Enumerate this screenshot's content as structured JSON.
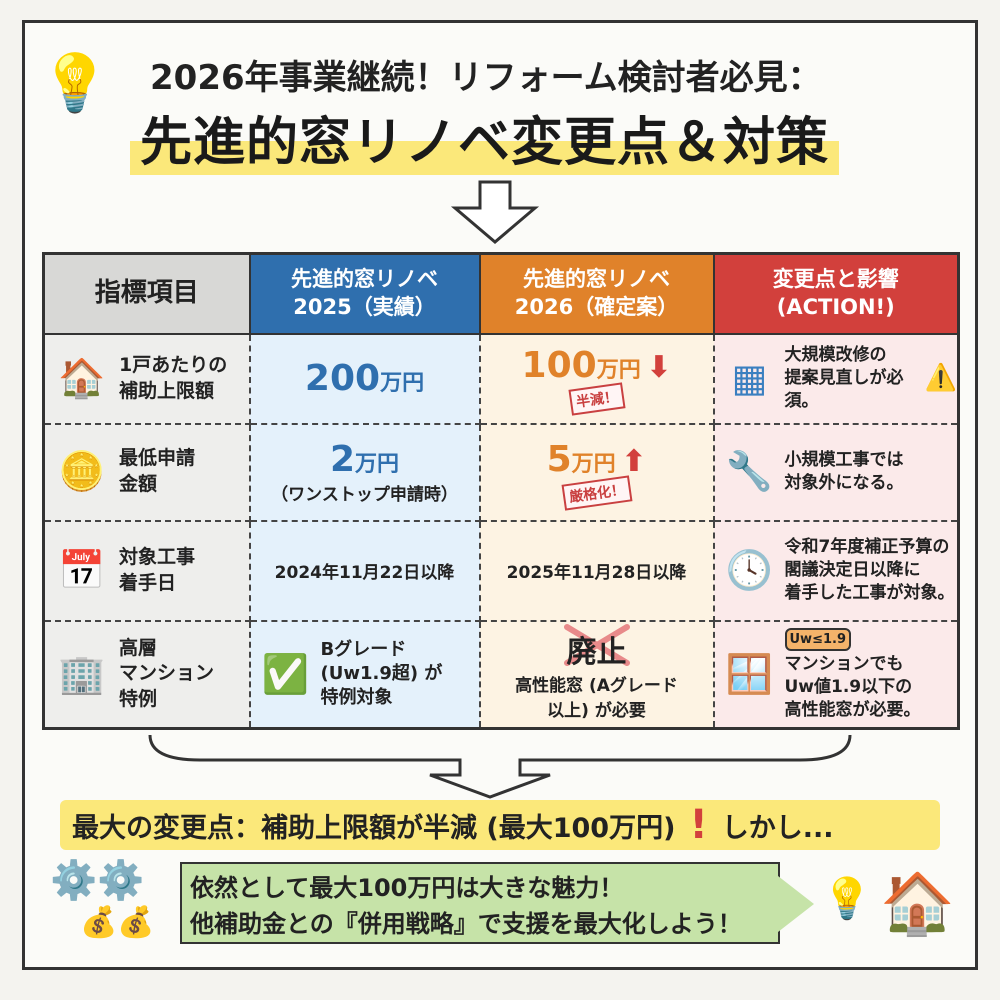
{
  "title": {
    "line1": "2026年事業継続！リフォーム検討者必見：",
    "line2": "先進的窓リノベ変更点＆対策"
  },
  "table": {
    "headers": [
      "指標項目",
      "先進的窓リノベ\n2025（実績）",
      "先進的窓リノベ\n2026（確定案）",
      "変更点と影響\n(ACTION!)"
    ],
    "rows": [
      {
        "label": "1戸あたりの\n補助上限額",
        "icon": "house-money-icon",
        "v2025": "200",
        "v2025_unit": "万円",
        "v2025_sub": "",
        "v2026": "100",
        "v2026_unit": "万円",
        "v2026_sub": "",
        "stamp": "半減！",
        "arrow": "down",
        "action": "大規模改修の\n提案見直しが必須。",
        "action_icon": "blueprint-icon",
        "extra_icon": "warning-icon"
      },
      {
        "label": "最低申請\n金額",
        "icon": "coins-icon",
        "v2025": "2",
        "v2025_unit": "万円",
        "v2025_sub": "（ワンストップ申請時）",
        "v2026": "5",
        "v2026_unit": "万円",
        "v2026_sub": "",
        "stamp": "厳格化！",
        "arrow": "up",
        "action": "小規模工事では\n対象外になる。",
        "action_icon": "wrench-icon"
      },
      {
        "label": "対象工事\n着手日",
        "icon": "calendar-icon",
        "v2025": "2024年11月22日以降",
        "v2026": "2025年11月28日以降",
        "action": "令和7年度補正予算の\n閣議決定日以降に\n着手した工事が対象。",
        "action_icon": "clock-icon"
      },
      {
        "label": "高層\nマンション\n特例",
        "icon": "building-icon",
        "v2025": "Bグレード\n(Uw1.9超) が\n特例対象",
        "v2026": "廃止",
        "v2026_sub": "高性能窓 (Aグレード\n以上) が必要",
        "action": "マンションでも\nUw値1.9以下の\n高性能窓が必要。",
        "action_icon": "window-icon",
        "badge": "Uw≤1.9"
      }
    ]
  },
  "banner": "最大の変更点：補助上限額が半減 (最大100万円)",
  "banner_tail": "しかし...",
  "footer": {
    "line1": "依然として最大100万円は大きな魅力！",
    "line2": "他補助金との『併用戦略』で支援を最大化しよう！"
  },
  "colors": {
    "blue": "#2f6fae",
    "orange": "#e0822a",
    "red": "#d2403c",
    "yellow": "#fbe87a",
    "green": "#c6e3a8"
  }
}
